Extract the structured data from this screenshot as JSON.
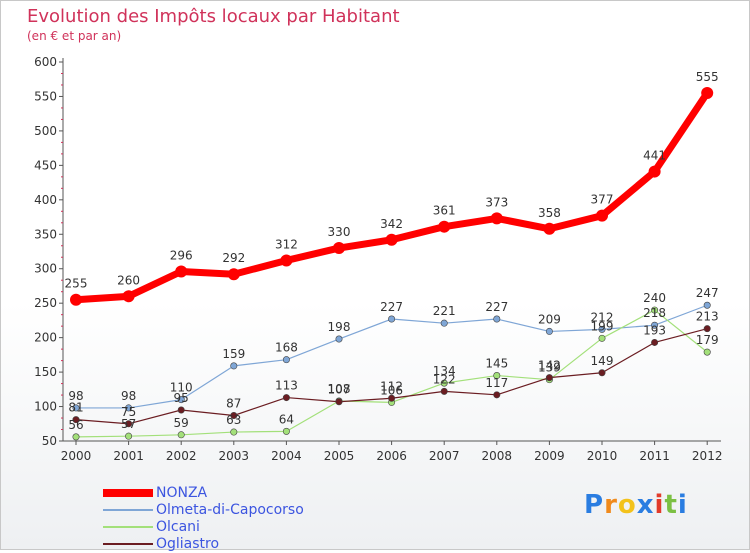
{
  "header": {
    "title": "Evolution des Impôts locaux par Habitant",
    "subtitle": "(en € et par an)"
  },
  "logo": {
    "text": "Proxiti",
    "colors": [
      "#2a7de1",
      "#f08a1c",
      "#f3c21b",
      "#2a7de1",
      "#e23b2b",
      "#7cc043",
      "#2a7de1"
    ]
  },
  "chart_data": {
    "type": "line",
    "title": "Evolution des Impôts locaux par Habitant",
    "subtitle": "(en € et par an)",
    "x": [
      "2000",
      "2001",
      "2002",
      "2003",
      "2004",
      "2005",
      "2006",
      "2007",
      "2008",
      "2009",
      "2010",
      "2011",
      "2012"
    ],
    "ylim": [
      50,
      600
    ],
    "yticks": [
      50,
      100,
      150,
      200,
      250,
      300,
      350,
      400,
      450,
      500,
      550,
      600
    ],
    "grid": false,
    "legend_position": "bottom-left",
    "series": [
      {
        "name": "NONZA",
        "color": "#ff0000",
        "values": [
          255,
          260,
          296,
          292,
          312,
          330,
          342,
          361,
          373,
          358,
          377,
          441,
          555
        ]
      },
      {
        "name": "Olmeta-di-Capocorso",
        "color": "#7fa6d6",
        "values": [
          98,
          98,
          110,
          159,
          168,
          198,
          227,
          221,
          227,
          209,
          212,
          218,
          247
        ]
      },
      {
        "name": "Olcani",
        "color": "#a3e07a",
        "values": [
          56,
          57,
          59,
          63,
          64,
          108,
          106,
          134,
          145,
          139,
          199,
          240,
          179
        ]
      },
      {
        "name": "Ogliastro",
        "color": "#6b1d22",
        "values": [
          81,
          75,
          95,
          87,
          113,
          107,
          112,
          122,
          117,
          142,
          149,
          193,
          213
        ]
      }
    ],
    "labels": [
      [
        "255",
        "260",
        "296",
        "292",
        "312",
        "330",
        "342",
        "361",
        "373",
        "358",
        "377",
        "441",
        "555"
      ],
      [
        "98",
        "98",
        "110",
        "159",
        "168",
        "198",
        "227",
        "221",
        "227",
        "209",
        "212",
        "218",
        "247"
      ],
      [
        "56",
        "57",
        "59",
        "63",
        "64",
        "108",
        "106",
        "134",
        "145",
        "139",
        "199",
        "240",
        "179"
      ],
      [
        "81",
        "75",
        "95",
        "87",
        "113",
        "107",
        "112",
        "122",
        "117",
        "142",
        "149",
        "193",
        "213"
      ]
    ]
  }
}
